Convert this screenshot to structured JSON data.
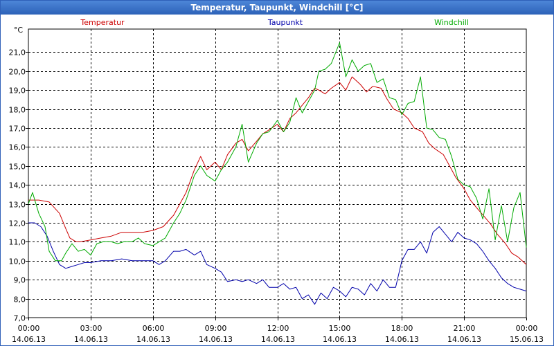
{
  "window": {
    "title": "Temperatur, Taupunkt, Windchill [°C]"
  },
  "chart_data": {
    "type": "line",
    "title": "Temperatur, Taupunkt, Windchill [°C]",
    "ylabel": "°C",
    "xlabel": "",
    "ylim": [
      7.0,
      22.0
    ],
    "grid": true,
    "legend": "top",
    "y_ticks": [
      "7,0",
      "8,0",
      "9,0",
      "10,0",
      "11,0",
      "12,0",
      "13,0",
      "14,0",
      "15,0",
      "16,0",
      "17,0",
      "18,0",
      "19,0",
      "20,0",
      "21,0"
    ],
    "x_ticks": [
      {
        "time": "00:00",
        "date": "14.06.13"
      },
      {
        "time": "03:00",
        "date": "14.06.13"
      },
      {
        "time": "06:00",
        "date": "14.06.13"
      },
      {
        "time": "09:00",
        "date": "14.06.13"
      },
      {
        "time": "12:00",
        "date": "14.06.13"
      },
      {
        "time": "15:00",
        "date": "14.06.13"
      },
      {
        "time": "18:00",
        "date": "14.06.13"
      },
      {
        "time": "21:00",
        "date": "14.06.13"
      },
      {
        "time": "00:00",
        "date": "15.06.13"
      }
    ],
    "xlim_hours": [
      0,
      24
    ],
    "series": [
      {
        "name": "Temperatur",
        "color": "#cc0000",
        "x": [
          0,
          0.5,
          1,
          1.5,
          1.8,
          2,
          2.3,
          2.5,
          3,
          3.5,
          4,
          4.5,
          5,
          5.5,
          6,
          6.5,
          7,
          7.3,
          7.6,
          8,
          8.3,
          8.6,
          9,
          9.3,
          9.6,
          10,
          10.3,
          10.6,
          11,
          11.3,
          11.6,
          12,
          12.3,
          12.6,
          12.9,
          13.2,
          13.5,
          13.8,
          14,
          14.3,
          14.6,
          15,
          15.3,
          15.6,
          16,
          16.3,
          16.6,
          17,
          17.3,
          17.6,
          18,
          18.3,
          18.6,
          19,
          19.3,
          19.6,
          20,
          20.3,
          20.6,
          21,
          21.3,
          21.6,
          22,
          22.3,
          22.6,
          23,
          23.3,
          23.6,
          24
        ],
        "values": [
          13.2,
          13.2,
          13.1,
          12.5,
          11.7,
          11.2,
          11.0,
          11.0,
          11.1,
          11.2,
          11.3,
          11.5,
          11.5,
          11.5,
          11.6,
          11.8,
          12.4,
          13.0,
          13.6,
          14.8,
          15.5,
          14.8,
          15.2,
          14.8,
          15.6,
          16.2,
          16.4,
          15.8,
          16.3,
          16.7,
          16.9,
          17.2,
          16.8,
          17.5,
          17.8,
          18.2,
          18.6,
          19.1,
          19.0,
          18.8,
          19.1,
          19.4,
          19.0,
          19.7,
          19.3,
          18.9,
          19.2,
          19.1,
          18.5,
          18.0,
          17.8,
          17.5,
          17.0,
          16.8,
          16.2,
          15.9,
          15.6,
          15.0,
          14.4,
          13.8,
          13.2,
          12.8,
          12.3,
          11.9,
          11.4,
          10.9,
          10.4,
          10.2,
          9.8
        ]
      },
      {
        "name": "Taupunkt",
        "color": "#0000aa",
        "x": [
          0,
          0.3,
          0.6,
          0.9,
          1.2,
          1.5,
          1.8,
          2.1,
          2.4,
          2.7,
          3,
          3.5,
          4,
          4.5,
          5,
          5.5,
          6,
          6.3,
          6.6,
          7,
          7.3,
          7.6,
          8,
          8.3,
          8.6,
          9,
          9.3,
          9.6,
          10,
          10.3,
          10.6,
          11,
          11.3,
          11.6,
          12,
          12.3,
          12.6,
          12.9,
          13.2,
          13.5,
          13.8,
          14.1,
          14.4,
          14.7,
          15,
          15.3,
          15.6,
          15.9,
          16.2,
          16.5,
          16.8,
          17.1,
          17.4,
          17.7,
          18,
          18.3,
          18.6,
          18.9,
          19.2,
          19.5,
          19.8,
          20.1,
          20.4,
          20.7,
          21,
          21.3,
          21.6,
          21.9,
          22.2,
          22.5,
          22.8,
          23.1,
          23.4,
          23.7,
          24
        ],
        "values": [
          12.0,
          12.0,
          11.8,
          11.3,
          10.5,
          9.8,
          9.6,
          9.7,
          9.8,
          9.9,
          9.9,
          10.0,
          10.0,
          10.1,
          10.0,
          10.0,
          10.0,
          9.8,
          10.0,
          10.5,
          10.5,
          10.6,
          10.3,
          10.5,
          9.8,
          9.6,
          9.4,
          8.9,
          9.0,
          8.9,
          9.0,
          8.8,
          9.0,
          8.6,
          8.6,
          8.8,
          8.5,
          8.6,
          8.0,
          8.2,
          7.7,
          8.3,
          8.0,
          8.6,
          8.4,
          8.1,
          8.6,
          8.5,
          8.2,
          8.8,
          8.4,
          9.0,
          8.6,
          8.6,
          10.0,
          10.6,
          10.6,
          11.0,
          10.4,
          11.5,
          11.8,
          11.4,
          11.0,
          11.5,
          11.2,
          11.1,
          10.9,
          10.5,
          10.0,
          9.6,
          9.1,
          8.8,
          8.6,
          8.5,
          8.4
        ]
      },
      {
        "name": "Windchill",
        "color": "#00aa00",
        "x": [
          0,
          0.2,
          0.5,
          0.8,
          1,
          1.3,
          1.6,
          1.8,
          2.1,
          2.4,
          2.7,
          3,
          3.3,
          3.6,
          4,
          4.3,
          4.6,
          5,
          5.3,
          5.6,
          6,
          6.3,
          6.6,
          7,
          7.3,
          7.6,
          8,
          8.3,
          8.6,
          9,
          9.3,
          9.6,
          10,
          10.3,
          10.6,
          11,
          11.3,
          11.6,
          12,
          12.3,
          12.6,
          12.9,
          13.2,
          13.5,
          13.8,
          14,
          14.3,
          14.6,
          15,
          15.3,
          15.6,
          15.9,
          16.2,
          16.5,
          16.8,
          17.1,
          17.4,
          17.7,
          18,
          18.3,
          18.6,
          18.9,
          19.2,
          19.5,
          19.8,
          20.1,
          20.4,
          20.7,
          21,
          21.3,
          21.6,
          21.9,
          22.2,
          22.5,
          22.8,
          23.1,
          23.4,
          23.7,
          24
        ],
        "values": [
          13.0,
          13.6,
          12.5,
          11.8,
          10.5,
          10.0,
          10.0,
          10.4,
          10.9,
          10.5,
          10.6,
          10.3,
          10.9,
          11.0,
          11.0,
          10.9,
          11.0,
          11.0,
          11.2,
          10.9,
          10.8,
          11.0,
          11.2,
          12.0,
          12.5,
          13.2,
          14.5,
          15.0,
          14.5,
          14.2,
          14.8,
          15.2,
          16.0,
          17.2,
          15.2,
          16.2,
          16.7,
          16.8,
          17.4,
          16.8,
          17.3,
          18.6,
          17.8,
          18.4,
          19.0,
          20.0,
          20.1,
          20.4,
          21.5,
          19.7,
          20.6,
          20.0,
          20.3,
          20.4,
          19.4,
          19.6,
          18.6,
          18.5,
          17.7,
          18.3,
          18.4,
          19.7,
          17.0,
          16.9,
          16.5,
          16.4,
          15.5,
          14.3,
          14.0,
          13.9,
          13.3,
          12.2,
          13.8,
          11.1,
          12.9,
          11.0,
          12.8,
          13.6,
          10.7
        ]
      }
    ]
  }
}
